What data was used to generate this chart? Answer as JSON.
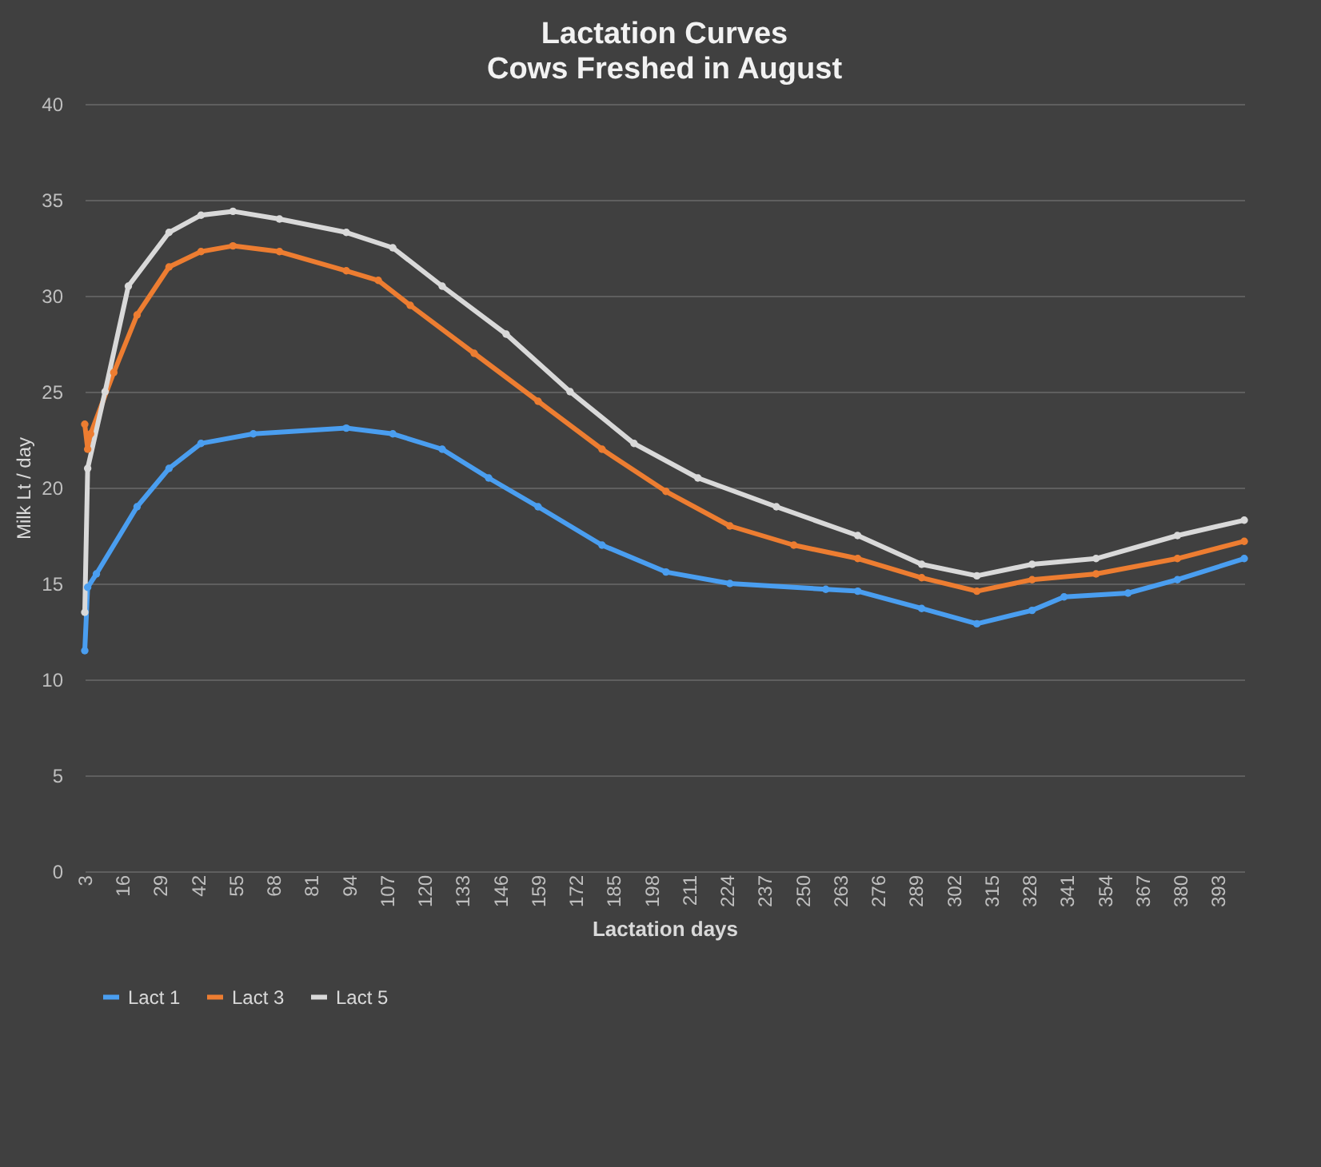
{
  "chart_data": {
    "type": "line",
    "title": "Lactation Curves",
    "subtitle": "Cows Freshed in August",
    "xlabel": "Lactation days",
    "ylabel": "Milk Lt / day",
    "xlim": [
      3,
      402
    ],
    "xticks": [
      3,
      16,
      29,
      42,
      55,
      68,
      81,
      94,
      107,
      120,
      133,
      146,
      159,
      172,
      185,
      198,
      211,
      224,
      237,
      250,
      263,
      276,
      289,
      302,
      315,
      328,
      341,
      354,
      367,
      380,
      393
    ],
    "ylim": [
      0,
      40
    ],
    "yticks": [
      0,
      5,
      10,
      15,
      20,
      25,
      30,
      35,
      40
    ],
    "grid": "y",
    "legend": "bottom",
    "marker": "circle",
    "line_style": "solid",
    "series": [
      {
        "name": "Lact 1",
        "color": "#4a9ef0",
        "x": [
          3,
          4,
          7,
          21,
          32,
          43,
          61,
          93,
          109,
          126,
          142,
          159,
          181,
          203,
          225,
          258,
          269,
          291,
          310,
          329,
          340,
          362,
          379,
          402
        ],
        "values": [
          11.5,
          14.8,
          15.5,
          19,
          21,
          22.3,
          22.8,
          23.1,
          22.8,
          22,
          20.5,
          19,
          17,
          15.6,
          15,
          14.7,
          14.6,
          13.7,
          12.9,
          13.6,
          14.3,
          14.5,
          15.2,
          16.3
        ]
      },
      {
        "name": "Lact 3",
        "color": "#ed7d31",
        "x": [
          3,
          4,
          5,
          13,
          21,
          32,
          43,
          54,
          70,
          93,
          104,
          115,
          137,
          159,
          181,
          203,
          225,
          247,
          269,
          291,
          310,
          329,
          351,
          379,
          402
        ],
        "values": [
          23.3,
          22,
          22.8,
          26,
          29,
          31.5,
          32.3,
          32.6,
          32.3,
          31.3,
          30.8,
          29.5,
          27,
          24.5,
          22,
          19.8,
          18,
          17,
          16.3,
          15.3,
          14.6,
          15.2,
          15.5,
          16.3,
          17.2
        ]
      },
      {
        "name": "Lact 5",
        "color": "#d9d9d9",
        "x": [
          3,
          4,
          10,
          18,
          32,
          43,
          54,
          70,
          93,
          109,
          126,
          148,
          170,
          192,
          214,
          241,
          269,
          291,
          310,
          329,
          351,
          379,
          402
        ],
        "values": [
          13.5,
          21,
          25,
          30.5,
          33.3,
          34.2,
          34.4,
          34,
          33.3,
          32.5,
          30.5,
          28,
          25,
          22.3,
          20.5,
          19,
          17.5,
          16,
          15.4,
          16,
          16.3,
          17.5,
          18.3
        ]
      }
    ]
  }
}
